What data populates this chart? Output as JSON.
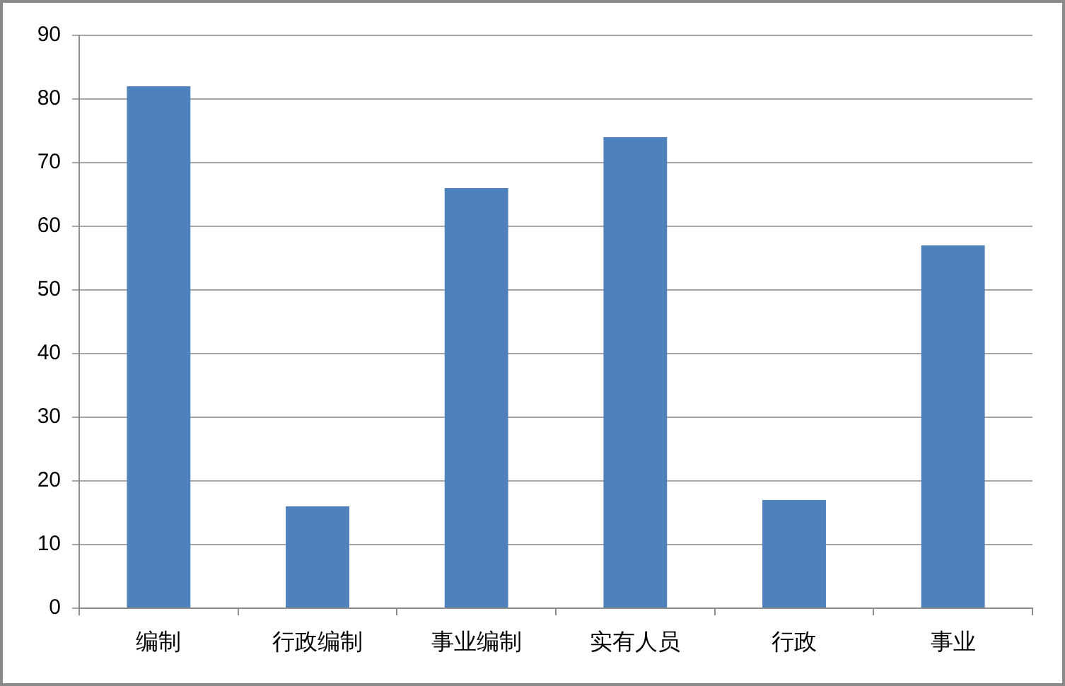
{
  "chart_data": {
    "type": "bar",
    "categories": [
      "编制",
      "行政编制",
      "事业编制",
      "实有人员",
      "行政",
      "事业"
    ],
    "values": [
      82,
      16,
      66,
      74,
      17,
      57
    ],
    "color": "#4f81bd",
    "ylim": [
      0,
      90
    ],
    "yticks": [
      0,
      10,
      20,
      30,
      40,
      50,
      60,
      70,
      80,
      90
    ],
    "grid": "y"
  }
}
